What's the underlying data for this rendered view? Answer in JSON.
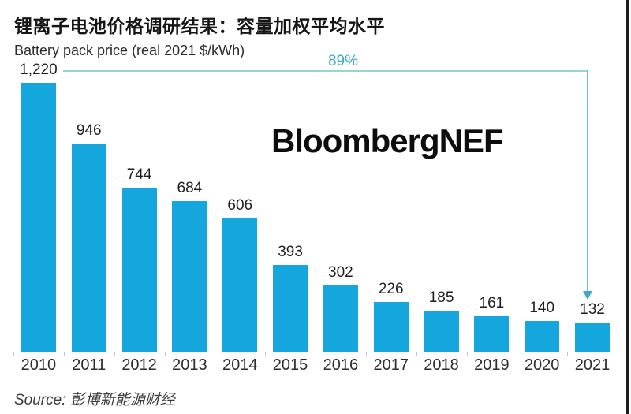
{
  "title": "锂离子电池价格调研结果：容量加权平均水平",
  "subtitle": "Battery pack price (real 2021 $/kWh)",
  "watermark": "BloombergNEF",
  "annotation": {
    "percent_label": "89%"
  },
  "source": {
    "prefix": "Source:",
    "text": "彭博新能源财经"
  },
  "colors": {
    "bar": "#14a6dc",
    "annotation_line_h": "#9ad2da",
    "annotation_line_v": "#6cbcd2",
    "annotation_text": "#3fa9cb",
    "axis": "#c8c8c8"
  },
  "chart_data": {
    "type": "bar",
    "title": "锂离子电池价格调研结果：容量加权平均水平",
    "subtitle": "Battery pack price (real 2021 $/kWh)",
    "categories": [
      "2010",
      "2011",
      "2012",
      "2013",
      "2014",
      "2015",
      "2016",
      "2017",
      "2018",
      "2019",
      "2020",
      "2021"
    ],
    "values": [
      1220,
      946,
      744,
      684,
      606,
      393,
      302,
      226,
      185,
      161,
      140,
      132
    ],
    "value_labels": [
      "1,220",
      "946",
      "744",
      "684",
      "606",
      "393",
      "302",
      "226",
      "185",
      "161",
      "140",
      "132"
    ],
    "xlabel": "",
    "ylabel": "Battery pack price (real 2021 $/kWh)",
    "ylim": [
      0,
      1220
    ],
    "grid": false,
    "legend": false,
    "annotation": "89%",
    "annotation_meaning": "decline from 2010 (1,220) to 2021 (132)"
  }
}
